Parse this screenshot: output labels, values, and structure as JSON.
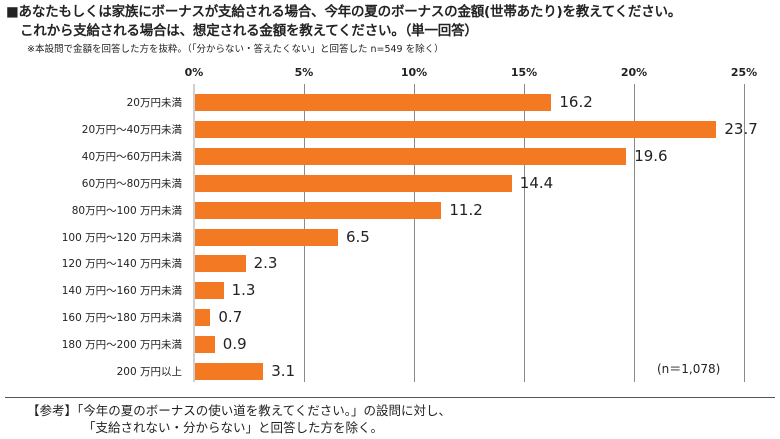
{
  "title": {
    "line1": "■あなたもしくは家族にボーナスが支給される場合、今年の夏のボーナスの金額(世帯あたり)を教えてください。",
    "line2": "これから支給される場合は、想定される金額を教えてください。（単一回答）"
  },
  "note": "※本設問で金額を回答した方を抜粋。（「分からない・答えたくない」と回答した n=549 を除く）",
  "sample_size": "(n＝1,078)",
  "reference": {
    "line1": "【参考】「今年の夏のボーナスの使い道を教えてください。」の設問に対し、",
    "line2": "「支給されない・分からない」と回答した方を除く。"
  },
  "colors": {
    "bar": "#f37a22",
    "grid": "#8a8a8a"
  },
  "chart_data": {
    "type": "bar",
    "orientation": "horizontal",
    "xlim": [
      0,
      25
    ],
    "ticks": [
      0,
      5,
      10,
      15,
      20,
      25
    ],
    "tick_labels": [
      "0%",
      "5%",
      "10%",
      "15%",
      "20%",
      "25%"
    ],
    "grid": true,
    "categories": [
      "20万円未満",
      "20万円～40万円未満",
      "40万円～60万円未満",
      "60万円～80万円未満",
      "80万円～100 万円未満",
      "100 万円～120 万円未満",
      "120 万円～140 万円未満",
      "140 万円～160 万円未満",
      "160 万円～180 万円未満",
      "180 万円～200 万円未満",
      "200 万円以上"
    ],
    "values": [
      16.2,
      23.7,
      19.6,
      14.4,
      11.2,
      6.5,
      2.3,
      1.3,
      0.7,
      0.9,
      3.1
    ],
    "value_labels": [
      "16.2",
      "23.7",
      "19.6",
      "14.4",
      "11.2",
      "6.5",
      "2.3",
      "1.3",
      "0.7",
      "0.9",
      "3.1"
    ]
  }
}
